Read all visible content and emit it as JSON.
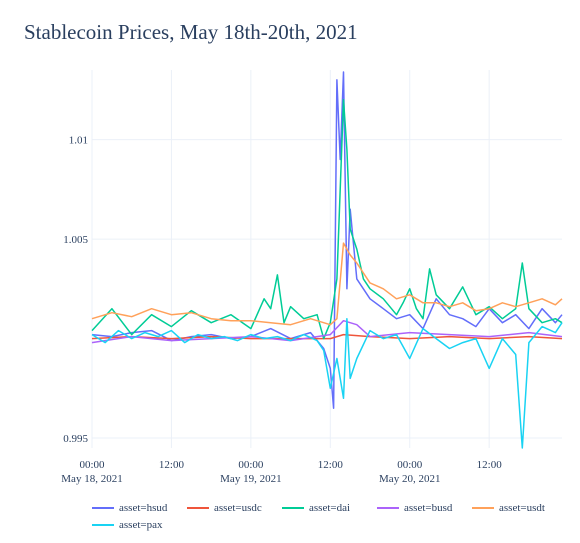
{
  "chart_data": {
    "type": "line",
    "title": "Stablecoin Prices, May 18th-20th, 2021",
    "xlabel": "",
    "ylabel": "",
    "x_range": [
      "2021-05-18 00:00",
      "2021-05-20 23:00"
    ],
    "ylim": [
      0.9945,
      1.0135
    ],
    "y_ticks": [
      {
        "value": 0.995,
        "label": "0.995"
      },
      {
        "value": 1.005,
        "label": "1.005"
      },
      {
        "value": 1.01,
        "label": "1.01"
      }
    ],
    "x_ticks": [
      {
        "hour": 0,
        "line1": "00:00",
        "line2": "May 18, 2021"
      },
      {
        "hour": 12,
        "line1": "12:00",
        "line2": ""
      },
      {
        "hour": 24,
        "line1": "00:00",
        "line2": "May 19, 2021"
      },
      {
        "hour": 36,
        "line1": "12:00",
        "line2": ""
      },
      {
        "hour": 48,
        "line1": "00:00",
        "line2": "May 20, 2021"
      },
      {
        "hour": 60,
        "line1": "12:00",
        "line2": ""
      }
    ],
    "grid": true,
    "legend_position": "bottom",
    "series": [
      {
        "name": "asset=hsud",
        "color": "#636efa",
        "points": [
          [
            0,
            1.0002
          ],
          [
            3,
            1.0001
          ],
          [
            6,
            1.0003
          ],
          [
            9,
            1.0004
          ],
          [
            12,
            0.9999
          ],
          [
            15,
            1.0001
          ],
          [
            18,
            1.0002
          ],
          [
            21,
            1.0
          ],
          [
            24,
            1.0001
          ],
          [
            27,
            1.0005
          ],
          [
            30,
            1.0
          ],
          [
            33,
            1.0003
          ],
          [
            35,
            0.9995
          ],
          [
            36,
            0.9985
          ],
          [
            36.5,
            0.9965
          ],
          [
            37,
            1.013
          ],
          [
            37.5,
            1.009
          ],
          [
            38,
            1.0134
          ],
          [
            38.5,
            1.0025
          ],
          [
            39,
            1.0065
          ],
          [
            40,
            1.003
          ],
          [
            42,
            1.002
          ],
          [
            44,
            1.0015
          ],
          [
            46,
            1.001
          ],
          [
            48,
            1.0012
          ],
          [
            50,
            1.0005
          ],
          [
            52,
            1.002
          ],
          [
            54,
            1.0012
          ],
          [
            56,
            1.001
          ],
          [
            58,
            1.0006
          ],
          [
            60,
            1.0015
          ],
          [
            62,
            1.0008
          ],
          [
            64,
            1.0012
          ],
          [
            66,
            1.0005
          ],
          [
            68,
            1.0015
          ],
          [
            70,
            1.0008
          ],
          [
            71,
            1.0012
          ]
        ]
      },
      {
        "name": "asset=usdc",
        "color": "#ef553b",
        "points": [
          [
            0,
            1.0
          ],
          [
            6,
            1.0001
          ],
          [
            12,
            1.0
          ],
          [
            18,
            1.0001
          ],
          [
            24,
            1.0
          ],
          [
            30,
            1.0
          ],
          [
            36,
            1.0
          ],
          [
            38,
            1.0002
          ],
          [
            42,
            1.0001
          ],
          [
            48,
            1.0
          ],
          [
            54,
            1.0001
          ],
          [
            60,
            1.0
          ],
          [
            66,
            1.0001
          ],
          [
            71,
            1.0
          ]
        ]
      },
      {
        "name": "asset=dai",
        "color": "#00cc96",
        "points": [
          [
            0,
            1.0004
          ],
          [
            3,
            1.0015
          ],
          [
            6,
            1.0002
          ],
          [
            9,
            1.0012
          ],
          [
            12,
            1.0006
          ],
          [
            15,
            1.0014
          ],
          [
            18,
            1.0008
          ],
          [
            21,
            1.0012
          ],
          [
            24,
            1.0005
          ],
          [
            26,
            1.002
          ],
          [
            27,
            1.0015
          ],
          [
            28,
            1.0032
          ],
          [
            29,
            1.0008
          ],
          [
            30,
            1.0016
          ],
          [
            32,
            1.001
          ],
          [
            34,
            1.0012
          ],
          [
            35,
            1.0
          ],
          [
            36,
            1.0008
          ],
          [
            37,
            1.003
          ],
          [
            38,
            1.012
          ],
          [
            38.5,
            1.0095
          ],
          [
            39,
            1.0055
          ],
          [
            40,
            1.0045
          ],
          [
            41,
            1.003
          ],
          [
            42,
            1.0025
          ],
          [
            44,
            1.002
          ],
          [
            46,
            1.0012
          ],
          [
            47,
            1.0018
          ],
          [
            48,
            1.0025
          ],
          [
            49,
            1.0015
          ],
          [
            50,
            1.001
          ],
          [
            51,
            1.0035
          ],
          [
            52,
            1.0022
          ],
          [
            54,
            1.0015
          ],
          [
            56,
            1.0026
          ],
          [
            58,
            1.0012
          ],
          [
            60,
            1.0016
          ],
          [
            62,
            1.001
          ],
          [
            64,
            1.0015
          ],
          [
            65,
            1.0038
          ],
          [
            66,
            1.0015
          ],
          [
            68,
            1.0008
          ],
          [
            70,
            1.001
          ],
          [
            71,
            1.0008
          ]
        ]
      },
      {
        "name": "asset=busd",
        "color": "#ab63fa",
        "points": [
          [
            0,
            0.9998
          ],
          [
            6,
            1.0001
          ],
          [
            12,
            0.9999
          ],
          [
            18,
            1.0
          ],
          [
            24,
            1.0001
          ],
          [
            30,
            0.9999
          ],
          [
            36,
            1.0002
          ],
          [
            38,
            1.0009
          ],
          [
            40,
            1.0007
          ],
          [
            42,
            1.0001
          ],
          [
            48,
            1.0003
          ],
          [
            54,
            1.0002
          ],
          [
            60,
            1.0001
          ],
          [
            66,
            1.0003
          ],
          [
            71,
            1.0001
          ]
        ]
      },
      {
        "name": "asset=usdt",
        "color": "#ffa15a",
        "points": [
          [
            0,
            1.001
          ],
          [
            3,
            1.0013
          ],
          [
            6,
            1.0011
          ],
          [
            9,
            1.0015
          ],
          [
            12,
            1.0012
          ],
          [
            15,
            1.0013
          ],
          [
            18,
            1.001
          ],
          [
            21,
            1.0009
          ],
          [
            24,
            1.0009
          ],
          [
            27,
            1.0008
          ],
          [
            30,
            1.0007
          ],
          [
            33,
            1.001
          ],
          [
            36,
            1.0007
          ],
          [
            37,
            1.001
          ],
          [
            38,
            1.0048
          ],
          [
            39,
            1.0042
          ],
          [
            40,
            1.0038
          ],
          [
            42,
            1.0028
          ],
          [
            44,
            1.0025
          ],
          [
            46,
            1.002
          ],
          [
            48,
            1.0022
          ],
          [
            50,
            1.0018
          ],
          [
            52,
            1.0018
          ],
          [
            54,
            1.0016
          ],
          [
            56,
            1.0018
          ],
          [
            58,
            1.0014
          ],
          [
            60,
            1.0015
          ],
          [
            62,
            1.0018
          ],
          [
            64,
            1.0016
          ],
          [
            66,
            1.0018
          ],
          [
            68,
            1.002
          ],
          [
            70,
            1.0017
          ],
          [
            71,
            1.002
          ]
        ]
      },
      {
        "name": "asset=pax",
        "color": "#19d3f3",
        "points": [
          [
            0,
            1.0002
          ],
          [
            2,
            0.9998
          ],
          [
            4,
            1.0004
          ],
          [
            6,
            1.0
          ],
          [
            8,
            1.0003
          ],
          [
            10,
            1.0001
          ],
          [
            12,
            1.0004
          ],
          [
            14,
            0.9998
          ],
          [
            16,
            1.0002
          ],
          [
            18,
            1.0
          ],
          [
            20,
            1.0001
          ],
          [
            22,
            0.9999
          ],
          [
            24,
            1.0002
          ],
          [
            26,
            1.0
          ],
          [
            28,
            1.0001
          ],
          [
            30,
            0.9999
          ],
          [
            32,
            1.0002
          ],
          [
            34,
            0.9999
          ],
          [
            35,
            0.9994
          ],
          [
            36,
            0.9975
          ],
          [
            37,
            0.999
          ],
          [
            38,
            0.997
          ],
          [
            38.5,
            1.001
          ],
          [
            39,
            0.998
          ],
          [
            40,
            0.999
          ],
          [
            42,
            1.0004
          ],
          [
            44,
            1.0
          ],
          [
            46,
            1.0002
          ],
          [
            48,
            0.999
          ],
          [
            50,
            1.0005
          ],
          [
            52,
            1.0
          ],
          [
            54,
            0.9995
          ],
          [
            56,
            0.9998
          ],
          [
            58,
            1.0
          ],
          [
            60,
            0.9985
          ],
          [
            62,
            1.0
          ],
          [
            64,
            0.9992
          ],
          [
            65,
            0.9945
          ],
          [
            66,
            0.9998
          ],
          [
            68,
            1.0006
          ],
          [
            70,
            1.0003
          ],
          [
            71,
            1.0008
          ]
        ]
      }
    ]
  }
}
